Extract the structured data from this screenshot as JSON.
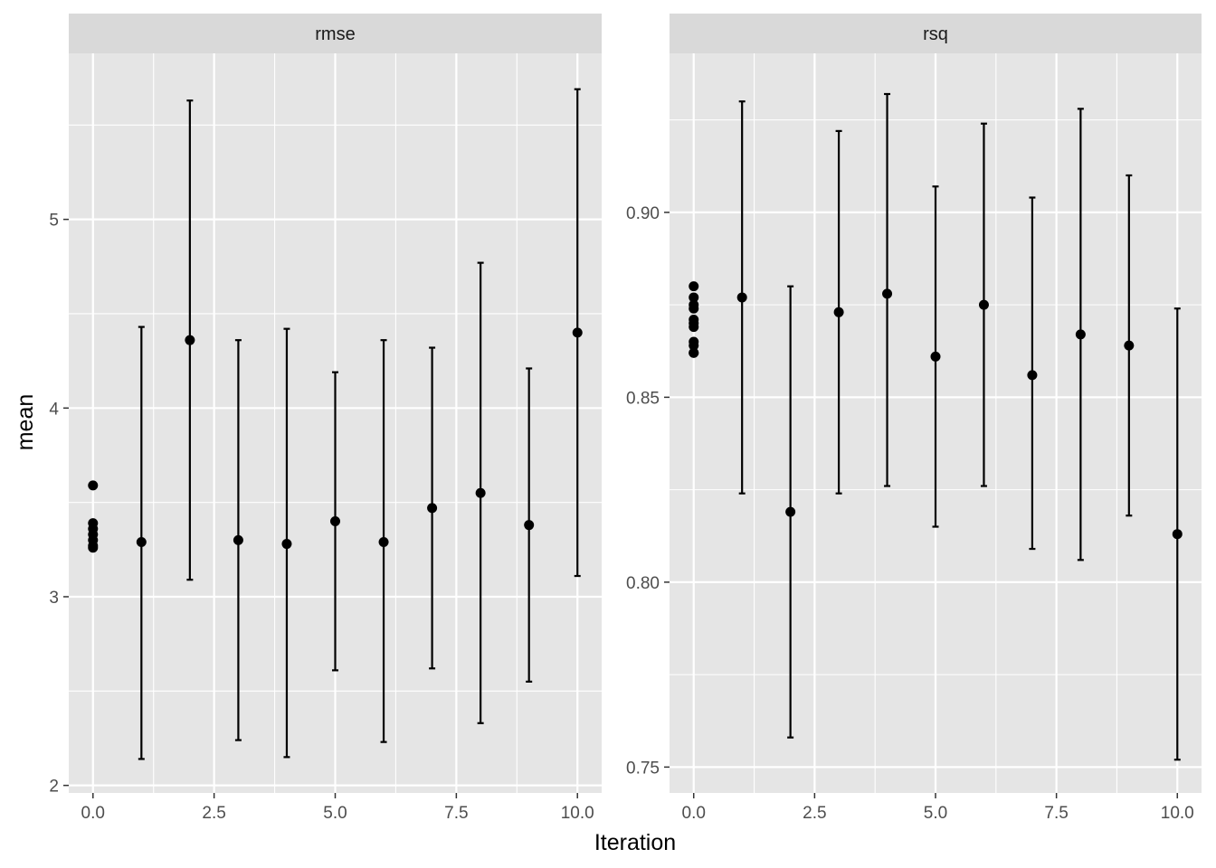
{
  "chart_data": [
    {
      "type": "scatter",
      "panel": "rmse",
      "xlabel": "Iteration",
      "ylabel": "mean",
      "xlim": [
        -0.5,
        10.5
      ],
      "ylim": [
        1.96,
        5.88
      ],
      "x_ticks": [
        0,
        2.5,
        5,
        7.5,
        10
      ],
      "x_tick_labels": [
        "0.0",
        "2.5",
        "5.0",
        "7.5",
        "10.0"
      ],
      "y_ticks": [
        2,
        3,
        4,
        5
      ],
      "y_tick_labels": [
        "2",
        "3",
        "4",
        "5"
      ],
      "initial_points": {
        "x": [
          0,
          0,
          0,
          0,
          0,
          0,
          0
        ],
        "y": [
          3.59,
          3.39,
          3.36,
          3.33,
          3.3,
          3.27,
          3.26
        ]
      },
      "points": [
        {
          "x": 1,
          "mean": 3.29,
          "lower": 2.14,
          "upper": 4.43
        },
        {
          "x": 2,
          "mean": 4.36,
          "lower": 3.09,
          "upper": 5.63
        },
        {
          "x": 3,
          "mean": 3.3,
          "lower": 2.24,
          "upper": 4.36
        },
        {
          "x": 4,
          "mean": 3.28,
          "lower": 2.15,
          "upper": 4.42
        },
        {
          "x": 5,
          "mean": 3.4,
          "lower": 2.61,
          "upper": 4.19
        },
        {
          "x": 6,
          "mean": 3.29,
          "lower": 2.23,
          "upper": 4.36
        },
        {
          "x": 7,
          "mean": 3.47,
          "lower": 2.62,
          "upper": 4.32
        },
        {
          "x": 8,
          "mean": 3.55,
          "lower": 2.33,
          "upper": 4.77
        },
        {
          "x": 9,
          "mean": 3.38,
          "lower": 2.55,
          "upper": 4.21
        },
        {
          "x": 10,
          "mean": 4.4,
          "lower": 3.11,
          "upper": 5.69
        }
      ],
      "grid": true
    },
    {
      "type": "scatter",
      "panel": "rsq",
      "xlabel": "Iteration",
      "ylabel": "mean",
      "xlim": [
        -0.5,
        10.5
      ],
      "ylim": [
        0.743,
        0.943
      ],
      "x_ticks": [
        0,
        2.5,
        5,
        7.5,
        10
      ],
      "x_tick_labels": [
        "0.0",
        "2.5",
        "5.0",
        "7.5",
        "10.0"
      ],
      "y_ticks": [
        0.75,
        0.8,
        0.85,
        0.9
      ],
      "y_tick_labels": [
        "0.75",
        "0.80",
        "0.85",
        "0.90"
      ],
      "initial_points": {
        "x": [
          0,
          0,
          0,
          0,
          0,
          0,
          0,
          0,
          0,
          0,
          0
        ],
        "y": [
          0.88,
          0.877,
          0.875,
          0.874,
          0.871,
          0.869,
          0.865,
          0.864,
          0.862,
          0.862,
          0.87
        ]
      },
      "points": [
        {
          "x": 1,
          "mean": 0.877,
          "lower": 0.824,
          "upper": 0.93
        },
        {
          "x": 2,
          "mean": 0.819,
          "lower": 0.758,
          "upper": 0.88
        },
        {
          "x": 3,
          "mean": 0.873,
          "lower": 0.824,
          "upper": 0.922
        },
        {
          "x": 4,
          "mean": 0.878,
          "lower": 0.826,
          "upper": 0.932
        },
        {
          "x": 5,
          "mean": 0.861,
          "lower": 0.815,
          "upper": 0.907
        },
        {
          "x": 6,
          "mean": 0.875,
          "lower": 0.826,
          "upper": 0.924
        },
        {
          "x": 7,
          "mean": 0.856,
          "lower": 0.809,
          "upper": 0.904
        },
        {
          "x": 8,
          "mean": 0.867,
          "lower": 0.806,
          "upper": 0.928
        },
        {
          "x": 9,
          "mean": 0.864,
          "lower": 0.818,
          "upper": 0.91
        },
        {
          "x": 10,
          "mean": 0.813,
          "lower": 0.752,
          "upper": 0.874
        }
      ],
      "grid": true
    }
  ],
  "colors": {
    "panel_bg": "#e5e5e5",
    "strip_bg": "#d9d9d9",
    "grid": "#ffffff",
    "marks": "#000000"
  }
}
